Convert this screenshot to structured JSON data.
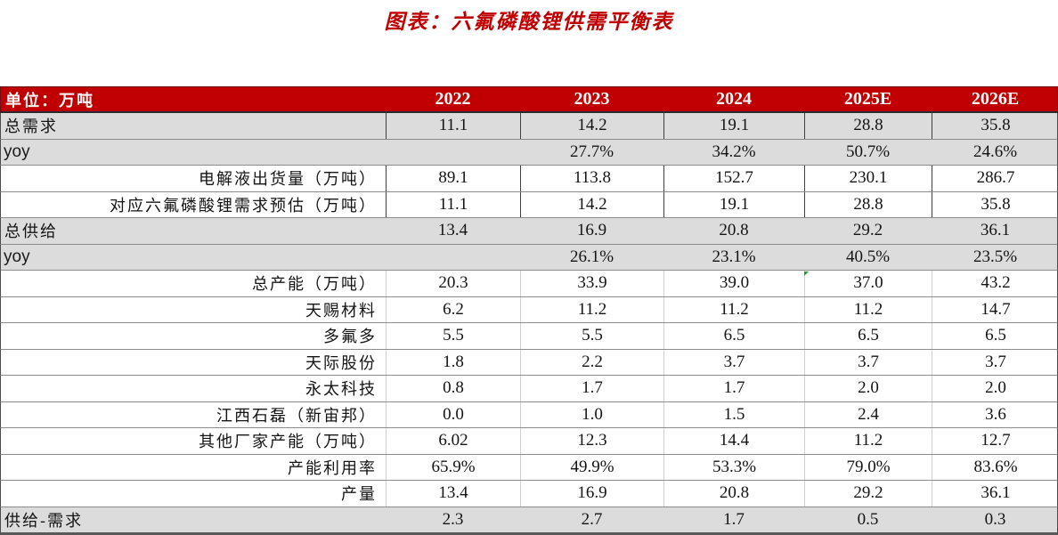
{
  "title": "图表：六氟磷酸锂供需平衡表",
  "colors": {
    "title_red": "#c00000",
    "header_bg": "#c00000",
    "header_text": "#ffffff",
    "gray_row_bg": "#dcdcdc",
    "comment_marker_green": "#1e9e2e"
  },
  "table": {
    "header": {
      "unit_label": "单位：万吨",
      "years": [
        "2022",
        "2023",
        "2024",
        "2025E",
        "2026E"
      ]
    },
    "rows": [
      {
        "label": "总需求",
        "values": [
          "11.1",
          "14.2",
          "19.1",
          "28.8",
          "35.8"
        ]
      },
      {
        "label": "yoy",
        "values": [
          "",
          "27.7%",
          "34.2%",
          "50.7%",
          "24.6%"
        ]
      },
      {
        "label": "电解液出货量（万吨）",
        "values": [
          "89.1",
          "113.8",
          "152.7",
          "230.1",
          "286.7"
        ]
      },
      {
        "label": "对应六氟磷酸锂需求预估（万吨）",
        "values": [
          "11.1",
          "14.2",
          "19.1",
          "28.8",
          "35.8"
        ]
      },
      {
        "label": "总供给",
        "values": [
          "13.4",
          "16.9",
          "20.8",
          "29.2",
          "36.1"
        ]
      },
      {
        "label": "yoy",
        "values": [
          "",
          "26.1%",
          "23.1%",
          "40.5%",
          "23.5%"
        ]
      },
      {
        "label": "总产能（万吨）",
        "values": [
          "20.3",
          "33.9",
          "39.0",
          "37.0",
          "43.2"
        ]
      },
      {
        "label": "天赐材料",
        "values": [
          "6.2",
          "11.2",
          "11.2",
          "11.2",
          "14.7"
        ]
      },
      {
        "label": "多氟多",
        "values": [
          "5.5",
          "5.5",
          "6.5",
          "6.5",
          "6.5"
        ]
      },
      {
        "label": "天际股份",
        "values": [
          "1.8",
          "2.2",
          "3.7",
          "3.7",
          "3.7"
        ]
      },
      {
        "label": "永太科技",
        "values": [
          "0.8",
          "1.7",
          "1.7",
          "2.0",
          "2.0"
        ]
      },
      {
        "label": "江西石磊（新宙邦）",
        "values": [
          "0.0",
          "1.0",
          "1.5",
          "2.4",
          "3.6"
        ]
      },
      {
        "label": "其他厂家产能（万吨）",
        "values": [
          "6.02",
          "12.3",
          "14.4",
          "11.2",
          "12.7"
        ]
      },
      {
        "label": "产能利用率",
        "values": [
          "65.9%",
          "49.9%",
          "53.3%",
          "79.0%",
          "83.6%"
        ]
      },
      {
        "label": "产量",
        "values": [
          "13.4",
          "16.9",
          "20.8",
          "29.2",
          "36.1"
        ]
      },
      {
        "label": "供给-需求",
        "values": [
          "2.3",
          "2.7",
          "1.7",
          "0.5",
          "0.3"
        ]
      }
    ],
    "comment_marker": {
      "row": "总产能（万吨）",
      "column": "2025E"
    }
  }
}
